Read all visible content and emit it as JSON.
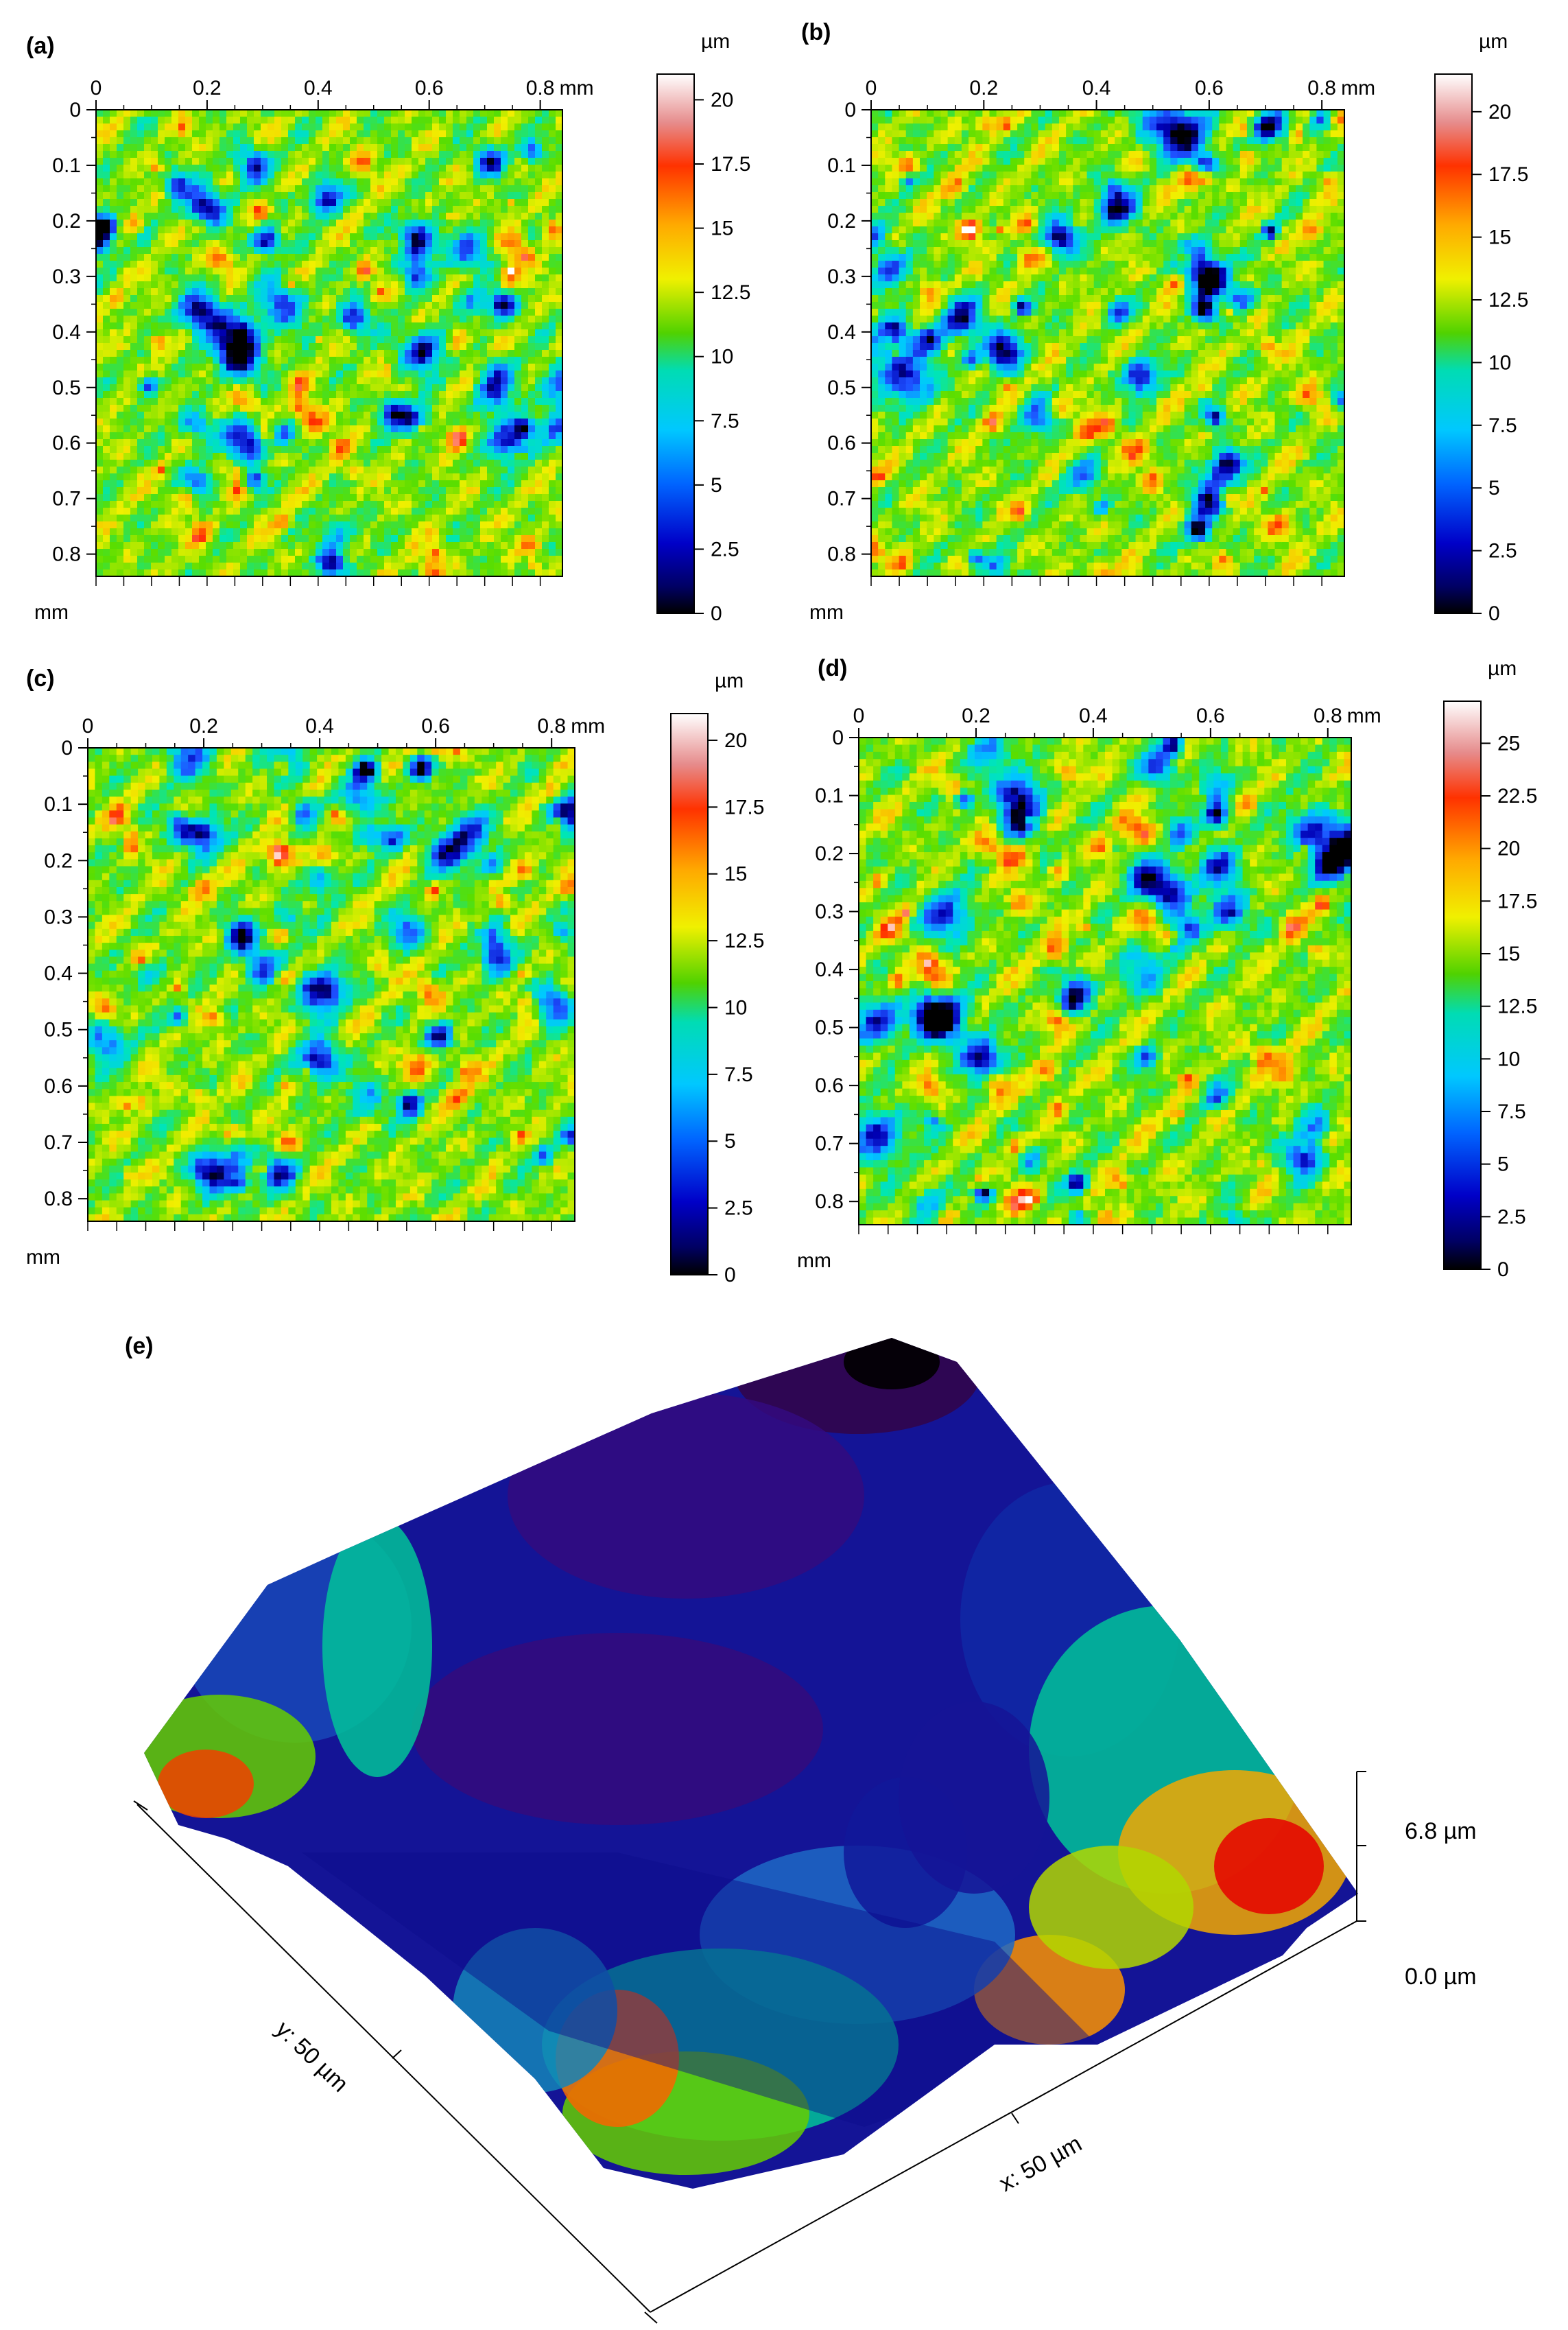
{
  "chart_data": [
    {
      "type": "heatmap",
      "panel_label": "(a)",
      "x_unit": "mm",
      "y_unit": "mm",
      "x_ticks": [
        "0",
        "0.2",
        "0.4",
        "0.6",
        "0.8"
      ],
      "y_ticks": [
        "0",
        "0.1",
        "0.2",
        "0.3",
        "0.4",
        "0.5",
        "0.6",
        "0.7",
        "0.8"
      ],
      "xlim": [
        0,
        0.84
      ],
      "ylim": [
        0,
        0.84
      ],
      "colorbar": {
        "unit": "µm",
        "range": [
          0,
          21
        ],
        "ticks": [
          "0",
          "2.5",
          "5",
          "7.5",
          "10",
          "12.5",
          "15",
          "17.5",
          "20"
        ]
      }
    },
    {
      "type": "heatmap",
      "panel_label": "(b)",
      "x_unit": "mm",
      "y_unit": "mm",
      "x_ticks": [
        "0",
        "0.2",
        "0.4",
        "0.6",
        "0.8"
      ],
      "y_ticks": [
        "0",
        "0.1",
        "0.2",
        "0.3",
        "0.4",
        "0.5",
        "0.6",
        "0.7",
        "0.8"
      ],
      "xlim": [
        0,
        0.84
      ],
      "ylim": [
        0,
        0.84
      ],
      "colorbar": {
        "unit": "µm",
        "range": [
          0,
          21.5
        ],
        "ticks": [
          "0",
          "2.5",
          "5",
          "7.5",
          "10",
          "12.5",
          "15",
          "17.5",
          "20"
        ]
      }
    },
    {
      "type": "heatmap",
      "panel_label": "(c)",
      "x_unit": "mm",
      "y_unit": "mm",
      "x_ticks": [
        "0",
        "0.2",
        "0.4",
        "0.6",
        "0.8"
      ],
      "y_ticks": [
        "0",
        "0.1",
        "0.2",
        "0.3",
        "0.4",
        "0.5",
        "0.6",
        "0.7",
        "0.8"
      ],
      "xlim": [
        0,
        0.84
      ],
      "ylim": [
        0,
        0.84
      ],
      "colorbar": {
        "unit": "µm",
        "range": [
          0,
          21
        ],
        "ticks": [
          "0",
          "2.5",
          "5",
          "7.5",
          "10",
          "12.5",
          "15",
          "17.5",
          "20"
        ]
      }
    },
    {
      "type": "heatmap",
      "panel_label": "(d)",
      "x_unit": "mm",
      "y_unit": "mm",
      "x_ticks": [
        "0",
        "0.2",
        "0.4",
        "0.6",
        "0.8"
      ],
      "y_ticks": [
        "0",
        "0.1",
        "0.2",
        "0.3",
        "0.4",
        "0.5",
        "0.6",
        "0.7",
        "0.8"
      ],
      "xlim": [
        0,
        0.84
      ],
      "ylim": [
        0,
        0.84
      ],
      "colorbar": {
        "unit": "µm",
        "range": [
          0,
          27
        ],
        "ticks": [
          "0",
          "2.5",
          "5",
          "7.5",
          "10",
          "12.5",
          "15",
          "17.5",
          "20",
          "22.5",
          "25"
        ]
      }
    },
    {
      "type": "surface-3d",
      "panel_label": "(e)",
      "x_label": "x: 50 µm",
      "y_label": "y: 50 µm",
      "z_ticks": [
        "6.8 µm",
        "0.0 µm"
      ],
      "zlim": [
        0,
        6.8
      ]
    }
  ],
  "colors": {
    "map_scale": [
      "#000000",
      "#0000b4",
      "#1e50ff",
      "#00c8ff",
      "#00e6b4",
      "#5ade00",
      "#f0f000",
      "#ffa000",
      "#ff2800",
      "#ffffff"
    ],
    "surface_scale": [
      "#2d002d",
      "#3c0a78",
      "#1e0a8c",
      "#0c1ea0",
      "#1e64c8",
      "#00c896",
      "#32c800",
      "#dcdc00",
      "#ff8c00",
      "#e60000"
    ],
    "axis": "#000000",
    "text": "#000000"
  }
}
